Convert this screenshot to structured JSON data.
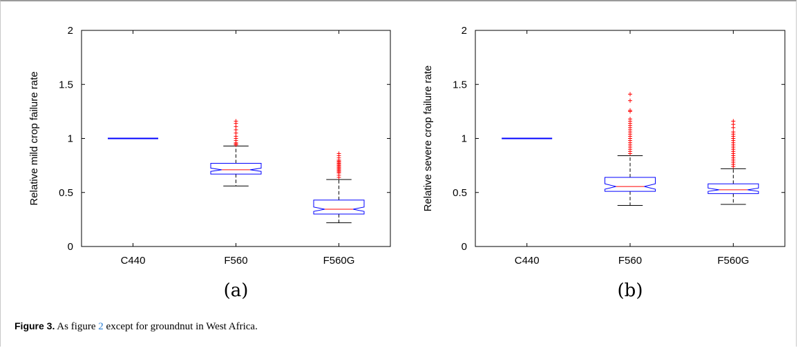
{
  "chart_data": [
    {
      "type": "box",
      "panel_label": "(a)",
      "ylabel": "Relative mild crop failure rate",
      "ylim": [
        0,
        2
      ],
      "yticks": [
        "0",
        "0.5",
        "1",
        "1.5",
        "2"
      ],
      "categories": [
        "C440",
        "F560",
        "F560G"
      ],
      "boxes": [
        {
          "q1": 1.0,
          "median": 1.0,
          "q3": 1.0,
          "notch_lo": 1.0,
          "notch_hi": 1.0,
          "whisker_lo": 1.0,
          "whisker_hi": 1.0,
          "outliers": []
        },
        {
          "q1": 0.67,
          "median": 0.71,
          "q3": 0.77,
          "notch_lo": 0.695,
          "notch_hi": 0.725,
          "whisker_lo": 0.56,
          "whisker_hi": 0.93,
          "outliers": [
            0.94,
            0.95,
            0.96,
            0.98,
            1.0,
            1.02,
            1.05,
            1.08,
            1.11,
            1.14,
            1.16
          ]
        },
        {
          "q1": 0.3,
          "median": 0.345,
          "q3": 0.43,
          "notch_lo": 0.325,
          "notch_hi": 0.365,
          "whisker_lo": 0.22,
          "whisker_hi": 0.62,
          "outliers": [
            0.64,
            0.66,
            0.68,
            0.69,
            0.7,
            0.71,
            0.72,
            0.73,
            0.74,
            0.75,
            0.76,
            0.77,
            0.78,
            0.79,
            0.8,
            0.82,
            0.84,
            0.86
          ]
        }
      ]
    },
    {
      "type": "box",
      "panel_label": "(b)",
      "ylabel": "Relative severe crop failure rate",
      "ylim": [
        0,
        2
      ],
      "yticks": [
        "0",
        "0.5",
        "1",
        "1.5",
        "2"
      ],
      "categories": [
        "C440",
        "F560",
        "F560G"
      ],
      "boxes": [
        {
          "q1": 1.0,
          "median": 1.0,
          "q3": 1.0,
          "notch_lo": 1.0,
          "notch_hi": 1.0,
          "whisker_lo": 1.0,
          "whisker_hi": 1.0,
          "outliers": []
        },
        {
          "q1": 0.51,
          "median": 0.555,
          "q3": 0.64,
          "notch_lo": 0.53,
          "notch_hi": 0.58,
          "whisker_lo": 0.38,
          "whisker_hi": 0.84,
          "outliers": [
            0.86,
            0.88,
            0.9,
            0.92,
            0.94,
            0.96,
            0.98,
            1.0,
            1.02,
            1.04,
            1.06,
            1.08,
            1.1,
            1.12,
            1.14,
            1.16,
            1.18,
            1.25,
            1.26,
            1.35,
            1.41
          ]
        },
        {
          "q1": 0.49,
          "median": 0.525,
          "q3": 0.58,
          "notch_lo": 0.51,
          "notch_hi": 0.54,
          "whisker_lo": 0.39,
          "whisker_hi": 0.72,
          "outliers": [
            0.74,
            0.76,
            0.78,
            0.8,
            0.82,
            0.84,
            0.86,
            0.88,
            0.9,
            0.92,
            0.94,
            0.96,
            0.98,
            1.0,
            1.02,
            1.04,
            1.06,
            1.1,
            1.13,
            1.16
          ]
        }
      ]
    }
  ],
  "caption": {
    "label": "Figure 3.",
    "text_before": " As figure ",
    "ref": "2",
    "text_after": " except for groundnut in West Africa."
  },
  "colors": {
    "box": "#0000ff",
    "median": "#ff0000",
    "outlier": "#ff0000",
    "whisker": "#000000"
  }
}
